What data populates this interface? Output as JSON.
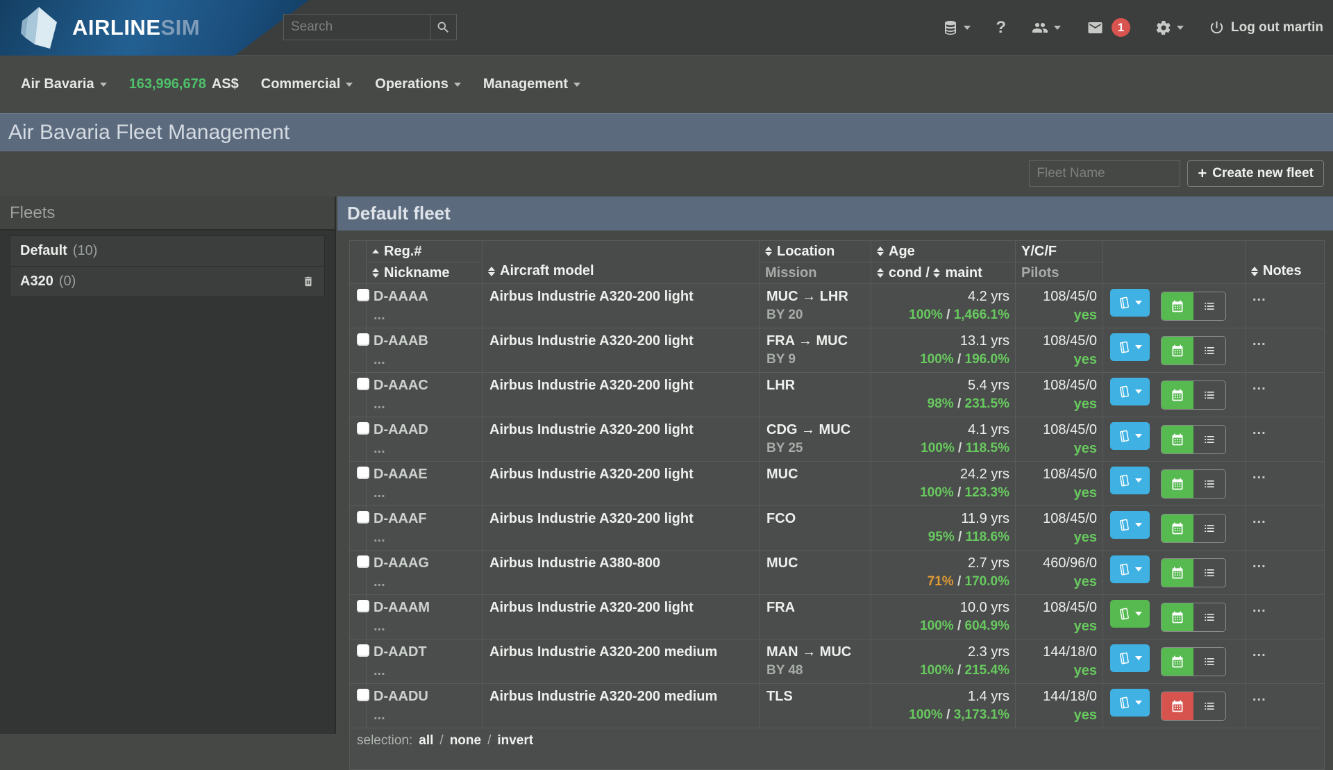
{
  "topbar": {
    "logo": {
      "part1": "AIRLINE",
      "part2": "SIM",
      "gem_icon": "gem-logo-icon"
    },
    "search": {
      "placeholder": "Search",
      "button_icon": "search-icon"
    },
    "icons": [
      "database-icon",
      "help-icon",
      "users-icon",
      "mail-icon",
      "gear-icon",
      "power-icon"
    ],
    "help_glyph": "?",
    "mail_badge": "1",
    "logout_label": "Log out martin"
  },
  "navbar": {
    "airline": "Air Bavaria",
    "balance": "163,996,678",
    "currency": "AS$",
    "menus": [
      "Commercial",
      "Operations",
      "Management"
    ]
  },
  "page": {
    "title": "Air Bavaria Fleet Management"
  },
  "fleet_form": {
    "input_placeholder": "Fleet Name",
    "plus_glyph": "+",
    "create_label": "Create new fleet"
  },
  "fleets_panel": {
    "title": "Fleets",
    "items": [
      {
        "name": "Default",
        "count": "(10)",
        "deletable": false
      },
      {
        "name": "A320",
        "count": "(0)",
        "deletable": true
      }
    ]
  },
  "fleet_table": {
    "title": "Default fleet",
    "sep": "/",
    "headers": {
      "reg": "Reg.#",
      "nickname": "Nickname",
      "model": "Aircraft model",
      "location": "Location",
      "mission": "Mission",
      "age": "Age",
      "cond": "cond",
      "maint": "maint",
      "ycf": "Y/C/F",
      "pilots": "Pilots",
      "notes": "Notes"
    },
    "sort": {
      "column": "reg",
      "direction": "asc"
    },
    "rows": [
      {
        "reg": "D-AAAA",
        "nickname": "...",
        "model": "Airbus Industrie A320-200 light",
        "location": "MUC → LHR",
        "mission": "BY 20",
        "age": "4.2 yrs",
        "cond": "100%",
        "cond_color": "green",
        "maint": "1,466.1%",
        "pilots": "108/45/0",
        "pilots_ok": "yes",
        "book_btn": "blue",
        "schedule_btn": "green",
        "notes": "..."
      },
      {
        "reg": "D-AAAB",
        "nickname": "...",
        "model": "Airbus Industrie A320-200 light",
        "location": "FRA → MUC",
        "mission": "BY 9",
        "age": "13.1 yrs",
        "cond": "100%",
        "cond_color": "green",
        "maint": "196.0%",
        "pilots": "108/45/0",
        "pilots_ok": "yes",
        "book_btn": "blue",
        "schedule_btn": "green",
        "notes": "..."
      },
      {
        "reg": "D-AAAC",
        "nickname": "...",
        "model": "Airbus Industrie A320-200 light",
        "location": "LHR",
        "mission": "",
        "age": "5.4 yrs",
        "cond": "98%",
        "cond_color": "green",
        "maint": "231.5%",
        "pilots": "108/45/0",
        "pilots_ok": "yes",
        "book_btn": "blue",
        "schedule_btn": "green",
        "notes": "..."
      },
      {
        "reg": "D-AAAD",
        "nickname": "...",
        "model": "Airbus Industrie A320-200 light",
        "location": "CDG → MUC",
        "mission": "BY 25",
        "age": "4.1 yrs",
        "cond": "100%",
        "cond_color": "green",
        "maint": "118.5%",
        "pilots": "108/45/0",
        "pilots_ok": "yes",
        "book_btn": "blue",
        "schedule_btn": "green",
        "notes": "..."
      },
      {
        "reg": "D-AAAE",
        "nickname": "...",
        "model": "Airbus Industrie A320-200 light",
        "location": "MUC",
        "mission": "",
        "age": "24.2 yrs",
        "cond": "100%",
        "cond_color": "green",
        "maint": "123.3%",
        "pilots": "108/45/0",
        "pilots_ok": "yes",
        "book_btn": "blue",
        "schedule_btn": "green",
        "notes": "..."
      },
      {
        "reg": "D-AAAF",
        "nickname": "...",
        "model": "Airbus Industrie A320-200 light",
        "location": "FCO",
        "mission": "",
        "age": "11.9 yrs",
        "cond": "95%",
        "cond_color": "green",
        "maint": "118.6%",
        "pilots": "108/45/0",
        "pilots_ok": "yes",
        "book_btn": "blue",
        "schedule_btn": "green",
        "notes": "..."
      },
      {
        "reg": "D-AAAG",
        "nickname": "...",
        "model": "Airbus Industrie A380-800",
        "location": "MUC",
        "mission": "",
        "age": "2.7 yrs",
        "cond": "71%",
        "cond_color": "orange",
        "maint": "170.0%",
        "pilots": "460/96/0",
        "pilots_ok": "yes",
        "book_btn": "blue",
        "schedule_btn": "green",
        "notes": "..."
      },
      {
        "reg": "D-AAAM",
        "nickname": "...",
        "model": "Airbus Industrie A320-200 light",
        "location": "FRA",
        "mission": "",
        "age": "10.0 yrs",
        "cond": "100%",
        "cond_color": "green",
        "maint": "604.9%",
        "pilots": "108/45/0",
        "pilots_ok": "yes",
        "book_btn": "green",
        "schedule_btn": "green",
        "notes": "..."
      },
      {
        "reg": "D-AADT",
        "nickname": "...",
        "model": "Airbus Industrie A320-200 medium",
        "location": "MAN → MUC",
        "mission": "BY 48",
        "age": "2.3 yrs",
        "cond": "100%",
        "cond_color": "green",
        "maint": "215.4%",
        "pilots": "144/18/0",
        "pilots_ok": "yes",
        "book_btn": "blue",
        "schedule_btn": "green",
        "notes": "..."
      },
      {
        "reg": "D-AADU",
        "nickname": "...",
        "model": "Airbus Industrie A320-200 medium",
        "location": "TLS",
        "mission": "",
        "age": "1.4 yrs",
        "cond": "100%",
        "cond_color": "green",
        "maint": "3,173.1%",
        "pilots": "144/18/0",
        "pilots_ok": "yes",
        "book_btn": "blue",
        "schedule_btn": "red",
        "notes": "..."
      }
    ],
    "selection": {
      "label": "selection:",
      "options": [
        "all",
        "none",
        "invert"
      ]
    }
  },
  "colors": {
    "brand_blue": "#236092",
    "titlebar": "#5c6a7d",
    "balance_green": "#4ec06a",
    "ok_green": "#68c95f",
    "warn_orange": "#e09a34",
    "button_blue": "#3fb1e3",
    "button_green": "#56ba50",
    "button_red": "#d6534e",
    "badge_red": "#d9534f"
  }
}
